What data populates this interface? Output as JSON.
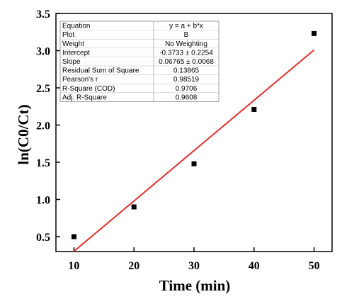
{
  "chart_data": {
    "type": "scatter",
    "xlabel": "Time (min)",
    "ylabel": "ln(C0/Ct)",
    "xlim": [
      7,
      53
    ],
    "ylim": [
      0.3,
      3.5
    ],
    "x_ticks": [
      10,
      20,
      30,
      40,
      50
    ],
    "y_ticks": [
      0.5,
      1.0,
      1.5,
      2.0,
      2.5,
      3.0,
      3.5
    ],
    "y_tick_labels": [
      "0.5",
      "1.0",
      "1.5",
      "2.0",
      "2.5",
      "3.0",
      "3.5"
    ],
    "series": [
      {
        "type": "scatter",
        "marker": "square",
        "color": "#000000",
        "points": [
          {
            "x": 10,
            "y": 0.5
          },
          {
            "x": 20,
            "y": 0.9
          },
          {
            "x": 30,
            "y": 1.48
          },
          {
            "x": 40,
            "y": 2.21
          },
          {
            "x": 50,
            "y": 3.23
          }
        ]
      },
      {
        "type": "line",
        "color": "#e0302e",
        "intercept": -0.3733,
        "slope": 0.06765,
        "x_range": [
          10,
          50
        ]
      }
    ],
    "grid": false,
    "stats_table": {
      "rows": [
        [
          "Equation",
          "y = a + b*x"
        ],
        [
          "Plot",
          "B"
        ],
        [
          "Weight",
          "No Weighting"
        ],
        [
          "Intercept",
          "-0.3733 ± 0.2254"
        ],
        [
          "Slope",
          "0.06765 ± 0.0068"
        ],
        [
          "Residual Sum of Square",
          "0.13865"
        ],
        [
          "Pearson's r",
          "0.98519"
        ],
        [
          "R-Square (COD)",
          "0.9706"
        ],
        [
          "Adj. R-Square",
          "0.9608"
        ]
      ]
    }
  }
}
